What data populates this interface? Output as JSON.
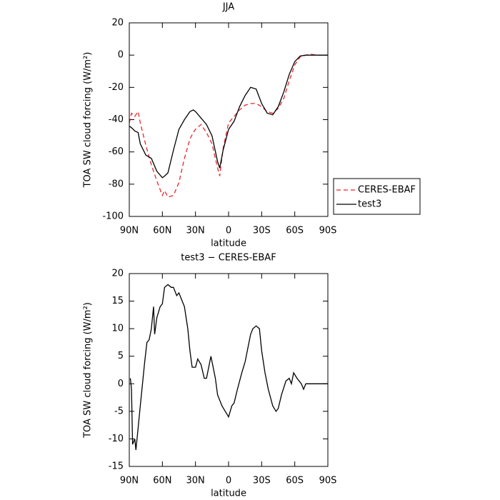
{
  "chart_data": [
    {
      "type": "line",
      "title": "JJA",
      "xlabel": "latitude",
      "ylabel": "TOA SW cloud forcing (W/m²)",
      "x": [
        90,
        88,
        85,
        82,
        80,
        75,
        70,
        65,
        60,
        58,
        55,
        50,
        45,
        40,
        35,
        32,
        30,
        25,
        20,
        15,
        10,
        8,
        5,
        0,
        -5,
        -10,
        -15,
        -20,
        -25,
        -30,
        -35,
        -40,
        -45,
        -50,
        -55,
        -60,
        -65,
        -70,
        -75,
        -80,
        -85,
        -90
      ],
      "series": [
        {
          "name": "CERES-EBAF",
          "color": "#e8262a",
          "dash": "dashed",
          "values": [
            -42,
            -36,
            -38,
            -35,
            -42,
            -56,
            -68,
            -78,
            -87,
            -84,
            -88,
            -87,
            -79,
            -64,
            -52,
            -48,
            -46,
            -43,
            -48,
            -55,
            -70,
            -75,
            -58,
            -42,
            -38,
            -34,
            -31,
            -30,
            -30,
            -32,
            -35,
            -36,
            -33,
            -27,
            -16,
            -6,
            -1,
            0,
            0.5,
            0,
            0,
            0
          ]
        },
        {
          "name": "test3",
          "color": "#000000",
          "dash": "solid",
          "values": [
            -44,
            -45,
            -47,
            -48,
            -55,
            -62,
            -64,
            -72,
            -76,
            -75,
            -73,
            -59,
            -46,
            -40,
            -35,
            -34,
            -35,
            -39,
            -43,
            -50,
            -66,
            -70,
            -59,
            -46,
            -41,
            -32,
            -25,
            -20,
            -21,
            -30,
            -36,
            -37,
            -32,
            -23,
            -12,
            -4,
            -0.5,
            0,
            0,
            0,
            0,
            0
          ]
        }
      ],
      "xlim": [
        90,
        -90
      ],
      "xticks": [
        {
          "value": 90,
          "label": "90N"
        },
        {
          "value": 60,
          "label": "60N"
        },
        {
          "value": 30,
          "label": "30N"
        },
        0,
        {
          "value": -30,
          "label": "30S"
        },
        {
          "value": -60,
          "label": "60S"
        },
        {
          "value": -90,
          "label": "90S"
        }
      ],
      "ylim": [
        -100,
        20
      ],
      "yticks": [
        -100,
        -80,
        -60,
        -40,
        -20,
        0,
        20
      ],
      "legend": "outside-right"
    },
    {
      "type": "line",
      "title": "test3 − CERES-EBAF",
      "xlabel": "latitude",
      "ylabel": "TOA SW cloud forcing (W/m²)",
      "x": [
        89,
        88,
        87,
        85,
        84,
        82,
        80,
        78,
        76,
        74,
        72,
        70,
        68,
        67,
        65,
        62,
        60,
        58,
        55,
        52,
        50,
        47,
        45,
        42,
        40,
        37,
        35,
        33,
        30,
        28,
        25,
        22,
        20,
        18,
        16,
        14,
        12,
        10,
        6,
        3,
        0,
        -3,
        -5,
        -8,
        -12,
        -15,
        -18,
        -20,
        -22,
        -25,
        -28,
        -30,
        -33,
        -36,
        -40,
        -43,
        -45,
        -48,
        -52,
        -55,
        -57,
        -59,
        -62,
        -66,
        -68,
        -70,
        -74,
        -80,
        -90
      ],
      "series": [
        {
          "color": "#000000",
          "dash": "solid",
          "values": [
            1,
            -1,
            -11,
            -10,
            -12,
            -8,
            -4,
            0,
            4,
            7.5,
            8,
            10,
            14,
            9,
            12,
            14,
            14.5,
            17.5,
            18,
            17.5,
            17.5,
            16,
            16.5,
            15,
            14,
            10,
            6,
            3,
            3,
            4.5,
            3.5,
            1,
            1,
            3,
            5,
            3,
            1,
            -2,
            -4,
            -5,
            -6,
            -4,
            -3.5,
            -1,
            2,
            4,
            7,
            9,
            10,
            10.5,
            10,
            6,
            2,
            -1,
            -4,
            -5,
            -4.5,
            -2,
            0.5,
            1,
            0,
            2,
            1,
            0,
            -1,
            0,
            0,
            0,
            0
          ]
        }
      ],
      "xlim": [
        90,
        -90
      ],
      "xticks": [
        {
          "value": 90,
          "label": "90N"
        },
        {
          "value": 60,
          "label": "60N"
        },
        {
          "value": 30,
          "label": "30N"
        },
        0,
        {
          "value": -30,
          "label": "30S"
        },
        {
          "value": -60,
          "label": "60S"
        },
        {
          "value": -90,
          "label": "90S"
        }
      ],
      "ylim": [
        -15,
        20
      ],
      "yticks": [
        -15,
        -10,
        -5,
        0,
        5,
        10,
        15,
        20
      ]
    }
  ]
}
